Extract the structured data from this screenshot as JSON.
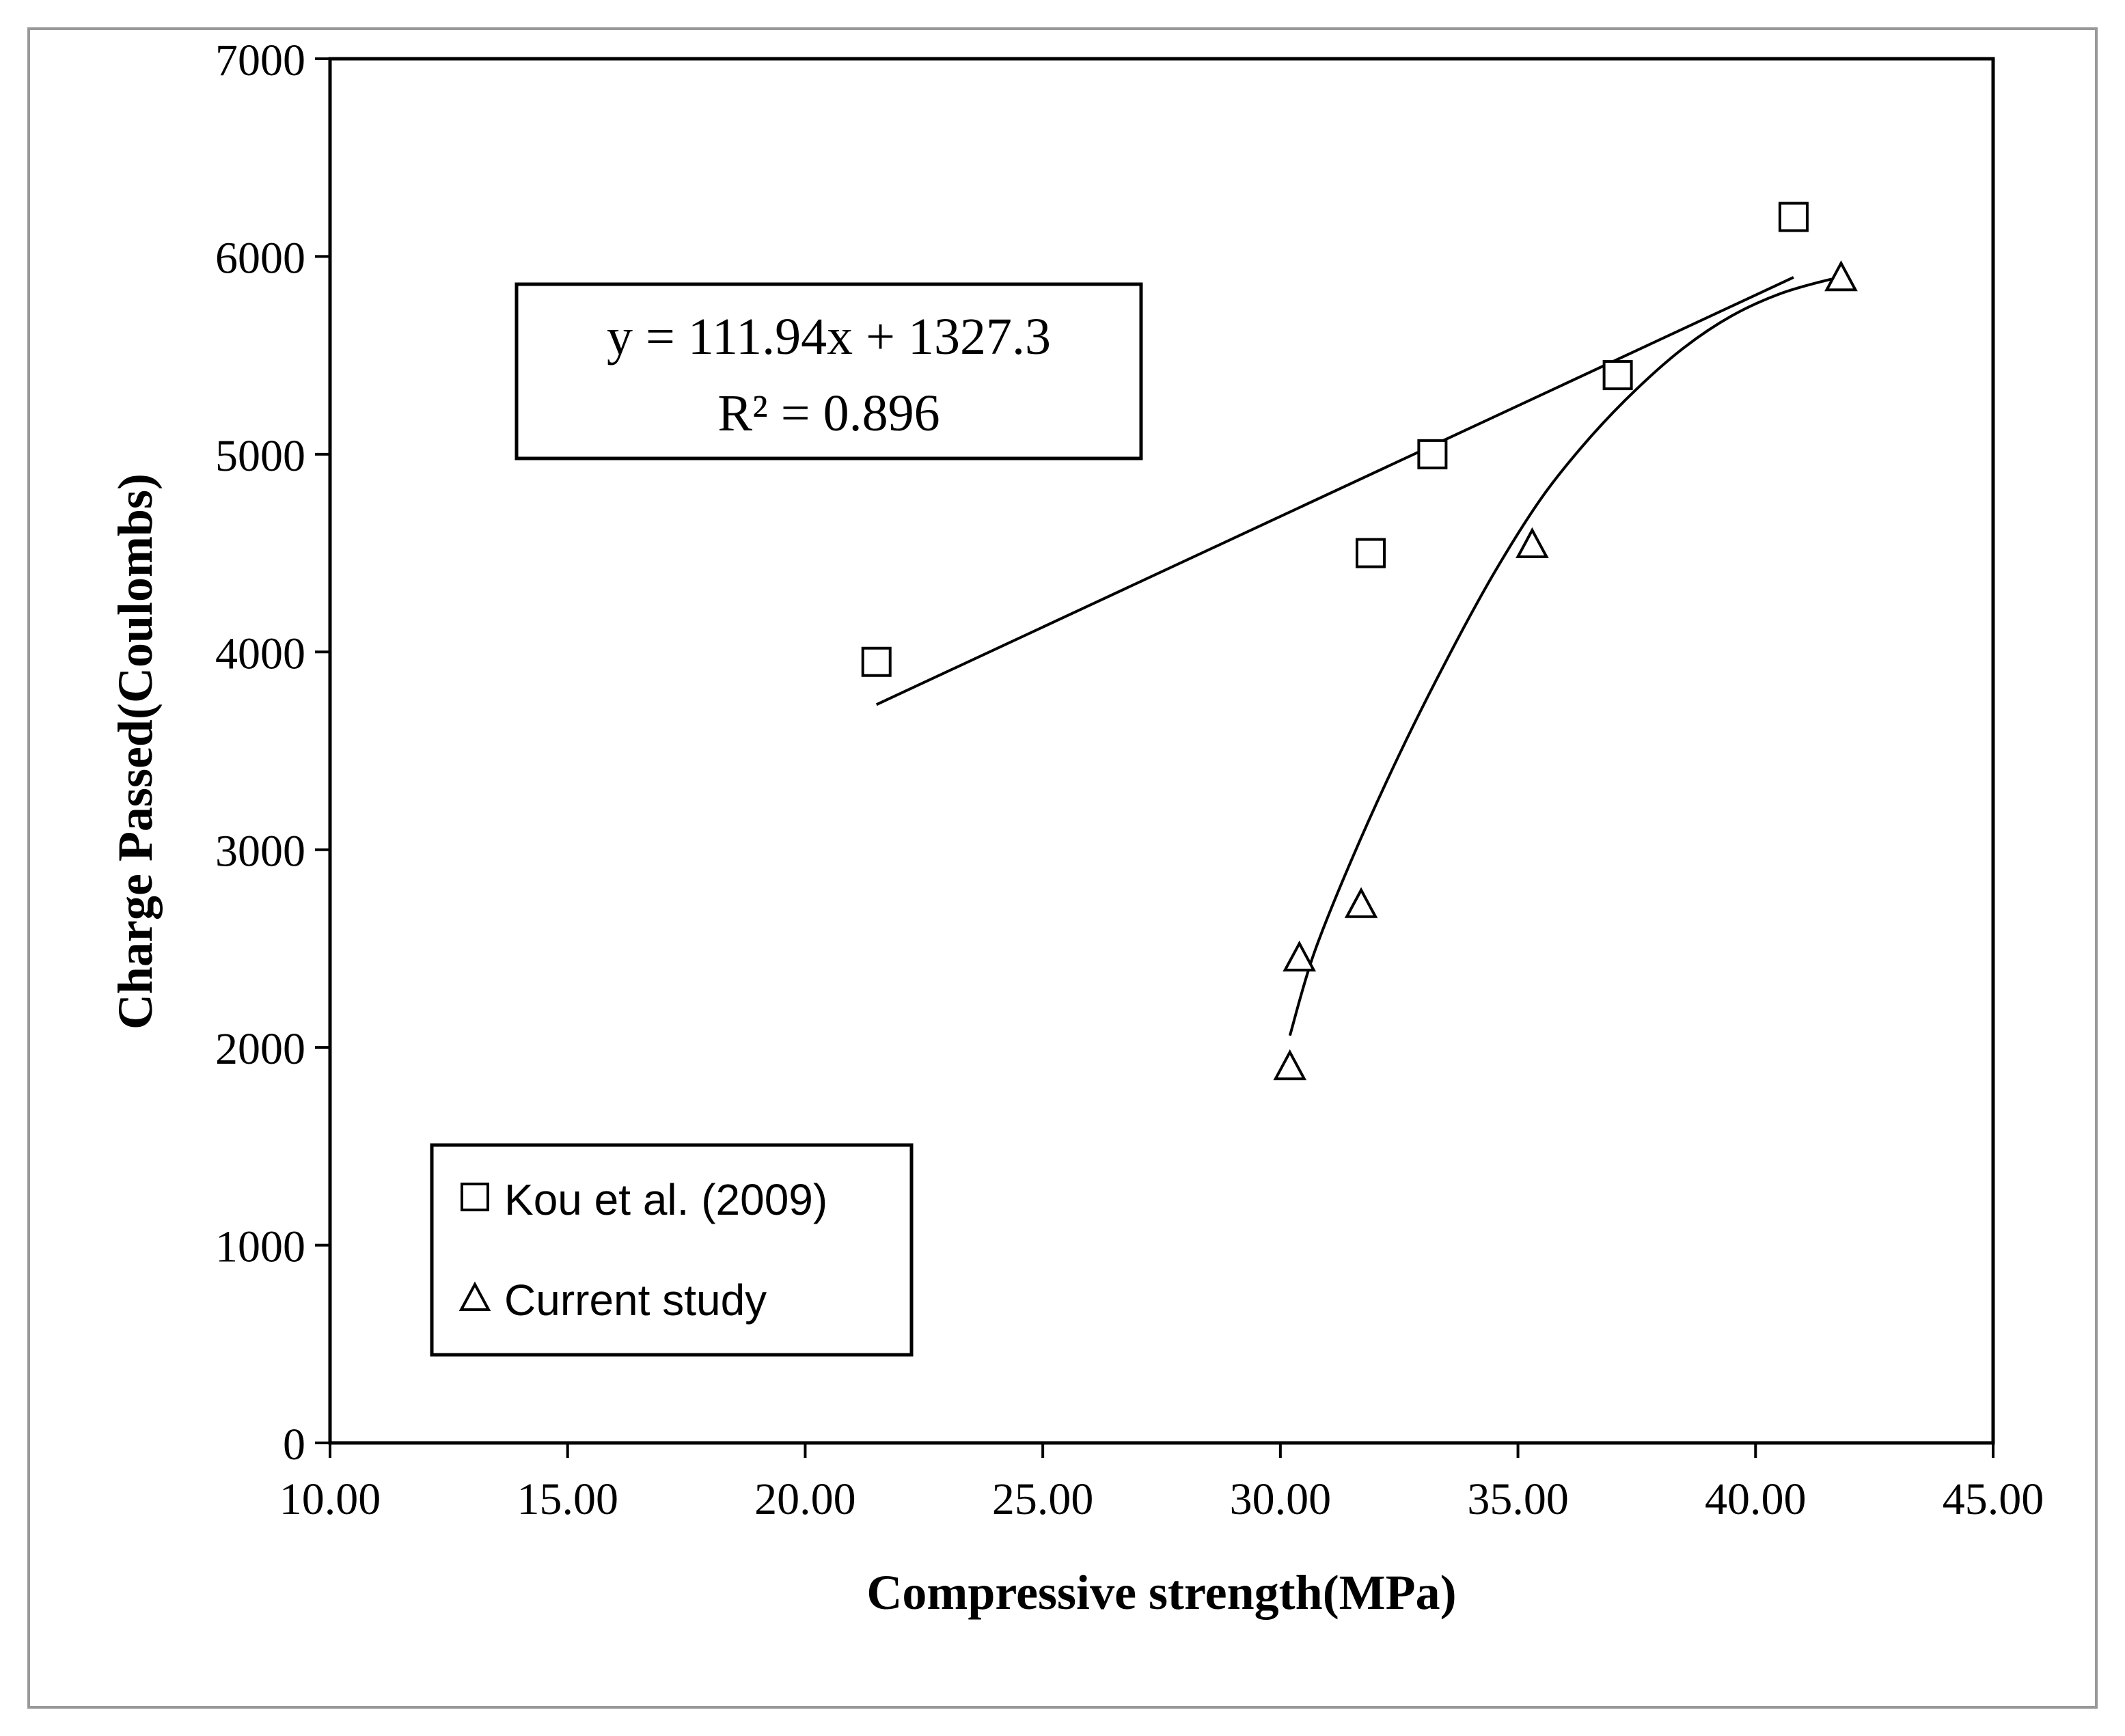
{
  "chart_data": {
    "type": "scatter",
    "xlabel": "Compressive strength(MPa)",
    "ylabel": "Charge Passed(Coulombs)",
    "xlim": [
      10,
      45
    ],
    "ylim": [
      0,
      7000
    ],
    "x_ticks": [
      "10.00",
      "15.00",
      "20.00",
      "25.00",
      "30.00",
      "35.00",
      "40.00",
      "45.00"
    ],
    "y_ticks": [
      "0",
      "1000",
      "2000",
      "3000",
      "4000",
      "5000",
      "6000",
      "7000"
    ],
    "grid": false,
    "legend_position": "bottom-left",
    "series": [
      {
        "name": "Kou et al. (2009)",
        "marker": "square",
        "points": [
          {
            "x": 21.5,
            "y": 3950
          },
          {
            "x": 31.9,
            "y": 4500
          },
          {
            "x": 33.2,
            "y": 5000
          },
          {
            "x": 37.1,
            "y": 5400
          },
          {
            "x": 40.8,
            "y": 6200
          }
        ],
        "trendline": {
          "kind": "linear",
          "slope": 111.94,
          "intercept": 1327.3,
          "x_range": [
            21.5,
            40.8
          ]
        }
      },
      {
        "name": "Current study",
        "marker": "triangle",
        "points": [
          {
            "x": 30.2,
            "y": 1900
          },
          {
            "x": 30.4,
            "y": 2450
          },
          {
            "x": 31.7,
            "y": 2720
          },
          {
            "x": 35.3,
            "y": 4540
          },
          {
            "x": 41.8,
            "y": 5890
          }
        ],
        "trendline": {
          "kind": "curve",
          "x": [
            30.2,
            30.7,
            31.5,
            32.5,
            33.5,
            34.5,
            35.5,
            36.5,
            37.5,
            38.5,
            39.5,
            40.5,
            41.5,
            41.8
          ],
          "y": [
            2060,
            2470,
            2950,
            3480,
            3960,
            4400,
            4780,
            5080,
            5330,
            5540,
            5700,
            5810,
            5880,
            5890
          ]
        }
      }
    ],
    "annotation": {
      "equation": "y = 111.94x + 1327.3",
      "r_squared": "R² = 0.896"
    },
    "colors": {
      "ink": "#000000",
      "frame": "#999999",
      "background": "#ffffff"
    }
  }
}
